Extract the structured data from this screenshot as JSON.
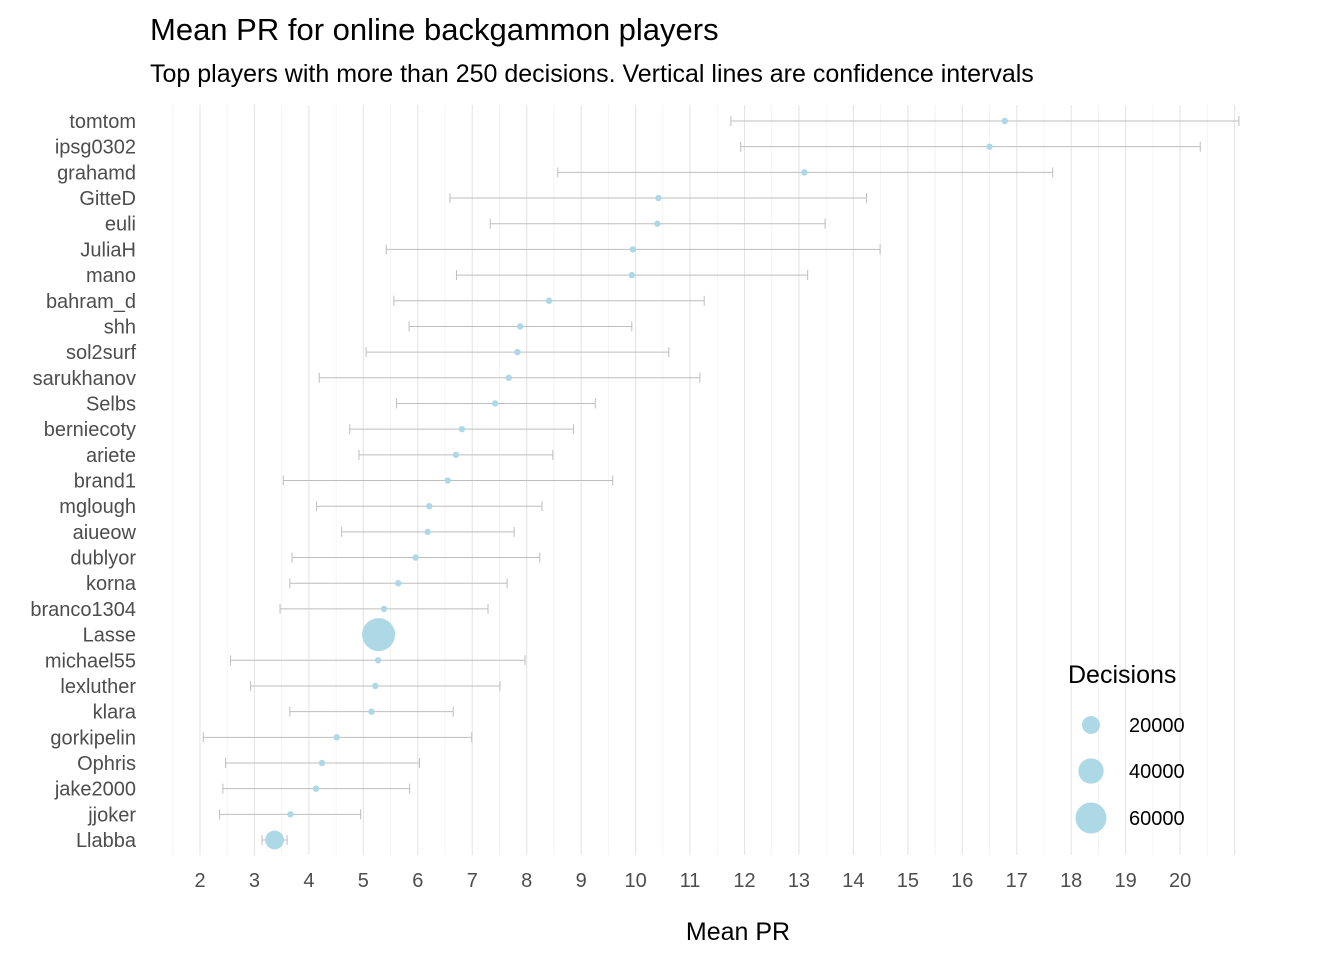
{
  "chart_data": {
    "type": "scatter",
    "title": "Mean PR for online backgammon players",
    "subtitle": "Top players with more than 250 decisions. Vertical lines are confidence intervals",
    "xlabel": "Mean PR",
    "ylabel": "",
    "xlim": [
      1.5,
      21.1
    ],
    "x_ticks": [
      2,
      3,
      4,
      5,
      6,
      7,
      8,
      9,
      10,
      11,
      12,
      13,
      14,
      15,
      16,
      17,
      18,
      19,
      20
    ],
    "grid": true,
    "point_color": "#add8e6",
    "errorbar_color": "#bebebe",
    "size_legend": {
      "title": "Decisions",
      "placement": "right",
      "entries": [
        20000,
        40000,
        60000
      ]
    },
    "players": [
      {
        "name": "tomtom",
        "mean": 16.78,
        "lower": 11.75,
        "upper": 21.08,
        "decisions": 300
      },
      {
        "name": "ipsg0302",
        "mean": 16.5,
        "lower": 11.93,
        "upper": 20.37,
        "decisions": 300
      },
      {
        "name": "grahamd",
        "mean": 13.1,
        "lower": 8.57,
        "upper": 17.66,
        "decisions": 450
      },
      {
        "name": "GitteD",
        "mean": 10.42,
        "lower": 6.59,
        "upper": 14.24,
        "decisions": 450
      },
      {
        "name": "euli",
        "mean": 10.4,
        "lower": 7.33,
        "upper": 13.48,
        "decisions": 450
      },
      {
        "name": "JuliaH",
        "mean": 9.95,
        "lower": 5.42,
        "upper": 14.49,
        "decisions": 450
      },
      {
        "name": "mano",
        "mean": 9.93,
        "lower": 6.71,
        "upper": 13.16,
        "decisions": 450
      },
      {
        "name": "bahram_d",
        "mean": 8.41,
        "lower": 5.56,
        "upper": 11.26,
        "decisions": 600
      },
      {
        "name": "shh",
        "mean": 7.88,
        "lower": 5.84,
        "upper": 9.93,
        "decisions": 1300
      },
      {
        "name": "sol2surf",
        "mean": 7.83,
        "lower": 5.05,
        "upper": 10.61,
        "decisions": 600
      },
      {
        "name": "sarukhanov",
        "mean": 7.67,
        "lower": 4.19,
        "upper": 11.18,
        "decisions": 650
      },
      {
        "name": "Selbs",
        "mean": 7.42,
        "lower": 5.61,
        "upper": 9.26,
        "decisions": 1100
      },
      {
        "name": "berniecoty",
        "mean": 6.81,
        "lower": 4.75,
        "upper": 8.86,
        "decisions": 900
      },
      {
        "name": "ariete",
        "mean": 6.7,
        "lower": 4.92,
        "upper": 8.48,
        "decisions": 900
      },
      {
        "name": "brand1",
        "mean": 6.55,
        "lower": 3.53,
        "upper": 9.58,
        "decisions": 500
      },
      {
        "name": "mglough",
        "mean": 6.21,
        "lower": 4.14,
        "upper": 8.28,
        "decisions": 450
      },
      {
        "name": "aiueow",
        "mean": 6.18,
        "lower": 4.6,
        "upper": 7.77,
        "decisions": 900
      },
      {
        "name": "dublyor",
        "mean": 5.96,
        "lower": 3.69,
        "upper": 8.24,
        "decisions": 450
      },
      {
        "name": "korna",
        "mean": 5.64,
        "lower": 3.65,
        "upper": 7.64,
        "decisions": 650
      },
      {
        "name": "branco1304",
        "mean": 5.38,
        "lower": 3.47,
        "upper": 7.29,
        "decisions": 650
      },
      {
        "name": "Lasse",
        "mean": 5.28,
        "lower": 5.13,
        "upper": 5.43,
        "decisions": 68000
      },
      {
        "name": "michael55",
        "mean": 5.27,
        "lower": 2.56,
        "upper": 7.97,
        "decisions": 450
      },
      {
        "name": "lexluther",
        "mean": 5.22,
        "lower": 2.93,
        "upper": 7.51,
        "decisions": 450
      },
      {
        "name": "klara",
        "mean": 5.15,
        "lower": 3.65,
        "upper": 6.65,
        "decisions": 900
      },
      {
        "name": "gorkipelin",
        "mean": 4.51,
        "lower": 2.06,
        "upper": 6.99,
        "decisions": 450
      },
      {
        "name": "Ophris",
        "mean": 4.24,
        "lower": 2.47,
        "upper": 6.03,
        "decisions": 600
      },
      {
        "name": "jake2000",
        "mean": 4.13,
        "lower": 2.42,
        "upper": 5.85,
        "decisions": 650
      },
      {
        "name": "jjoker",
        "mean": 3.66,
        "lower": 2.36,
        "upper": 4.95,
        "decisions": 1000
      },
      {
        "name": "Llabba",
        "mean": 3.37,
        "lower": 3.14,
        "upper": 3.6,
        "decisions": 22000
      }
    ]
  }
}
